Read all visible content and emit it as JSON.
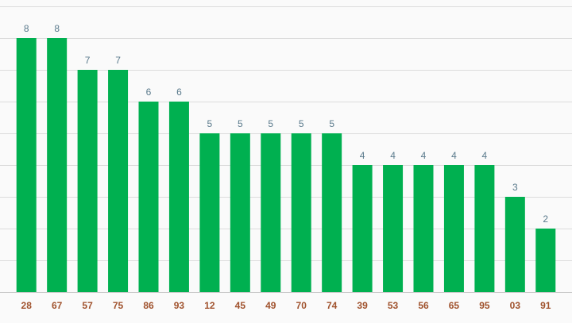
{
  "chart_data": {
    "type": "bar",
    "categories": [
      "28",
      "67",
      "57",
      "75",
      "86",
      "93",
      "12",
      "45",
      "49",
      "70",
      "74",
      "39",
      "53",
      "56",
      "65",
      "95",
      "03",
      "91"
    ],
    "values": [
      8,
      8,
      7,
      7,
      6,
      6,
      5,
      5,
      5,
      5,
      5,
      4,
      4,
      4,
      4,
      4,
      3,
      2
    ],
    "title": "",
    "xlabel": "",
    "ylabel": "",
    "ylim": [
      0,
      9
    ],
    "grid": true,
    "legend": "none",
    "colors": {
      "bar": "#00b050",
      "value_label": "#5a7a8c",
      "tick_label": "#a0522d",
      "gridline": "#dcdcdc",
      "background": "#fafafa"
    }
  }
}
